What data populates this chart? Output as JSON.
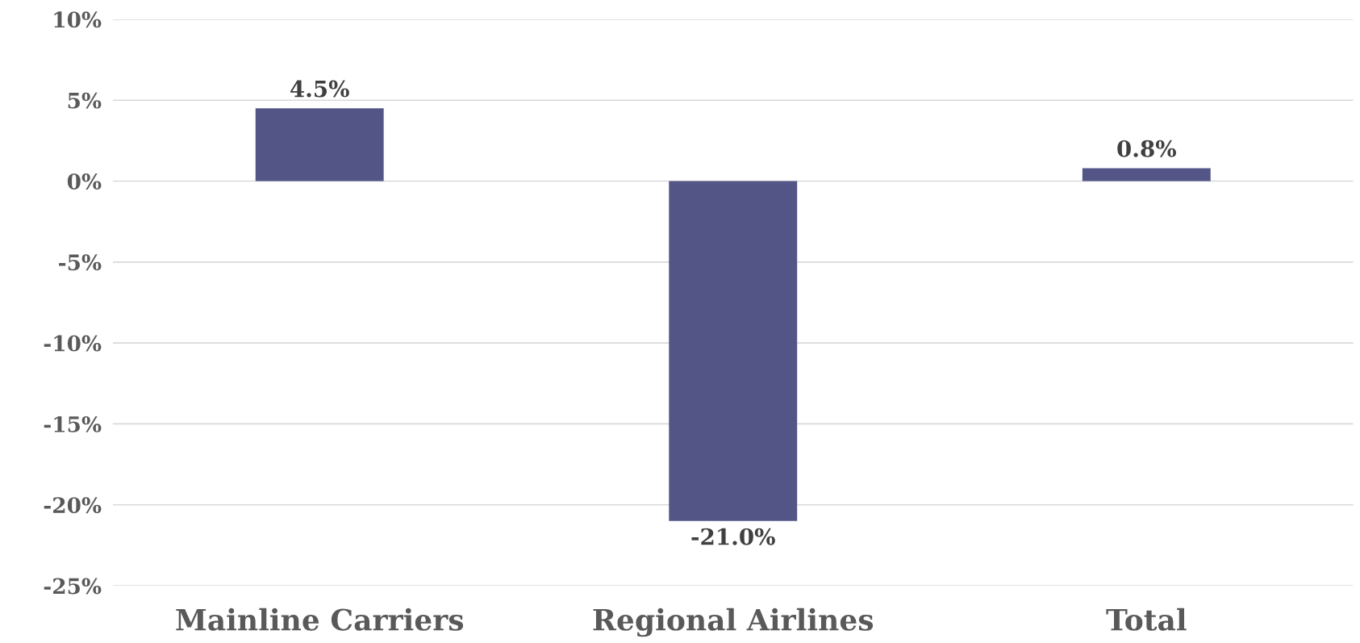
{
  "chart_data": {
    "type": "bar",
    "categories": [
      "Mainline Carriers",
      "Regional Airlines",
      "Total"
    ],
    "series": [
      {
        "color": "#535587",
        "values": [
          4.5,
          -21.0,
          0.8
        ],
        "value_labels": [
          "4.5%",
          "-21.0%",
          "0.8%"
        ]
      }
    ],
    "ylim": [
      -25,
      10
    ],
    "yticks": [
      {
        "value": -25,
        "label": "-25%"
      },
      {
        "value": -20,
        "label": "-20%"
      },
      {
        "value": -15,
        "label": "-15%"
      },
      {
        "value": -10,
        "label": "-10%"
      },
      {
        "value": -5,
        "label": "-5%"
      },
      {
        "value": 0,
        "label": "0%"
      },
      {
        "value": 5,
        "label": "5%"
      },
      {
        "value": 10,
        "label": "10%"
      }
    ],
    "grid": "y",
    "legend": false
  }
}
